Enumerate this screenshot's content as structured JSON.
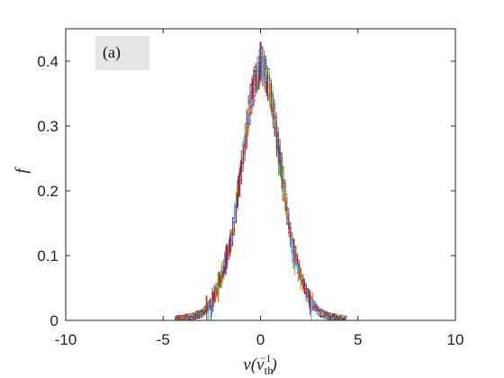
{
  "chart_data": {
    "type": "line",
    "panel_label": "(a)",
    "xlabel": "v(v_th^-1)",
    "xlabel_main": "v(v",
    "xlabel_sub": "th",
    "xlabel_sup": "−1",
    "xlabel_close": ")",
    "ylabel": "f",
    "xlim": [
      -10,
      10
    ],
    "ylim": [
      0,
      0.45
    ],
    "x_ticks": [
      -10,
      -5,
      0,
      5,
      10
    ],
    "x_tick_labels": [
      "-10",
      "-5",
      "0",
      "5",
      "10"
    ],
    "y_ticks": [
      0,
      0.1,
      0.2,
      0.3,
      0.4
    ],
    "y_tick_labels": [
      "0",
      "0.1",
      "0.2",
      "0.3",
      "0.4"
    ],
    "grid": false,
    "x": [
      -9,
      -8,
      -7,
      -6,
      -5,
      -4.5,
      -4,
      -3.5,
      -3,
      -2.5,
      -2,
      -1.5,
      -1,
      -0.5,
      0,
      0.5,
      1,
      1.5,
      2,
      2.5,
      3,
      3.5,
      4,
      4.5,
      5,
      6,
      7,
      8,
      9
    ],
    "series_colors": [
      "#0072BD",
      "#D95319",
      "#EDB120",
      "#7E2F8E",
      "#77AC30",
      "#4DBEEE",
      "#A2142F"
    ],
    "envelope": [
      0,
      0,
      0,
      0,
      0,
      0.001,
      0.003,
      0.006,
      0.012,
      0.03,
      0.07,
      0.13,
      0.24,
      0.35,
      0.4,
      0.35,
      0.24,
      0.13,
      0.07,
      0.03,
      0.012,
      0.006,
      0.003,
      0.001,
      0,
      0,
      0,
      0,
      0
    ],
    "peak": {
      "x": 0,
      "y": 0.4
    }
  }
}
